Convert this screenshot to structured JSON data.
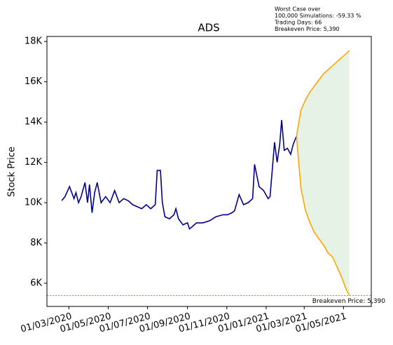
{
  "chart_data": {
    "type": "line",
    "title": "ADS",
    "y_label": "Stock Price",
    "annotation": [
      "Worst Case over",
      "100,000 Simulations: -59.33 %",
      "Trading Days: 66",
      "Breakeven Price: 5,390"
    ],
    "xlim": [
      "2020-01-27",
      "2021-06-13"
    ],
    "xticks": [
      {
        "value": "2020-03-01",
        "label": "01/03/2020"
      },
      {
        "value": "2020-05-01",
        "label": "01/05/2020"
      },
      {
        "value": "2020-07-01",
        "label": "01/07/2020"
      },
      {
        "value": "2020-09-01",
        "label": "01/09/2020"
      },
      {
        "value": "2020-11-01",
        "label": "01/11/2020"
      },
      {
        "value": "2021-01-01",
        "label": "01/01/2021"
      },
      {
        "value": "2021-03-01",
        "label": "01/03/2021"
      },
      {
        "value": "2021-05-01",
        "label": "01/05/2021"
      }
    ],
    "ylim": [
      4850,
      18250
    ],
    "yticks": [
      {
        "value": 6000,
        "label": "6K"
      },
      {
        "value": 8000,
        "label": "8K"
      },
      {
        "value": 10000,
        "label": "10K"
      },
      {
        "value": 12000,
        "label": "12K"
      },
      {
        "value": 14000,
        "label": "14K"
      },
      {
        "value": 16000,
        "label": "16K"
      },
      {
        "value": 18000,
        "label": "18K"
      }
    ],
    "fill_color": "#e5f2e5",
    "series": [
      {
        "color": "#00008b",
        "x": [
          "2020-02-19",
          "2020-02-24",
          "2020-03-02",
          "2020-03-09",
          "2020-03-12",
          "2020-03-16",
          "2020-03-20",
          "2020-03-26",
          "2020-03-30",
          "2020-04-02",
          "2020-04-06",
          "2020-04-10",
          "2020-04-14",
          "2020-04-20",
          "2020-04-27",
          "2020-05-04",
          "2020-05-11",
          "2020-05-18",
          "2020-05-25",
          "2020-06-01",
          "2020-06-08",
          "2020-06-15",
          "2020-06-22",
          "2020-06-29",
          "2020-07-06",
          "2020-07-13",
          "2020-07-16",
          "2020-07-21",
          "2020-07-24",
          "2020-07-28",
          "2020-08-04",
          "2020-08-11",
          "2020-08-14",
          "2020-08-18",
          "2020-08-25",
          "2020-09-01",
          "2020-09-04",
          "2020-09-08",
          "2020-09-15",
          "2020-09-25",
          "2020-10-05",
          "2020-10-15",
          "2020-10-26",
          "2020-11-02",
          "2020-11-09",
          "2020-11-13",
          "2020-11-20",
          "2020-11-27",
          "2020-12-04",
          "2020-12-11",
          "2020-12-14",
          "2020-12-21",
          "2020-12-28",
          "2021-01-04",
          "2021-01-07",
          "2021-01-14",
          "2021-01-18",
          "2021-01-22",
          "2021-01-25",
          "2021-01-29",
          "2021-02-03",
          "2021-02-08",
          "2021-02-12",
          "2021-02-17"
        ],
        "values": [
          10100,
          10300,
          10800,
          10200,
          10500,
          10000,
          10300,
          11000,
          10000,
          10900,
          9500,
          10500,
          11000,
          10000,
          10300,
          10000,
          10600,
          10000,
          10200,
          10100,
          9900,
          9800,
          9700,
          9900,
          9700,
          9900,
          11600,
          11600,
          10000,
          9300,
          9200,
          9400,
          9700,
          9200,
          8900,
          9000,
          8700,
          8800,
          9000,
          9000,
          9100,
          9300,
          9400,
          9400,
          9500,
          9600,
          10400,
          9900,
          10000,
          10200,
          11900,
          10800,
          10600,
          10200,
          10300,
          13000,
          12000,
          12900,
          14100,
          12600,
          12700,
          12400,
          12900,
          13300
        ]
      },
      {
        "color": "#ffa500",
        "x": [
          "2021-02-17",
          "2021-02-24",
          "2021-03-03",
          "2021-03-10",
          "2021-03-17",
          "2021-03-24",
          "2021-03-31",
          "2021-04-07",
          "2021-04-14",
          "2021-04-21",
          "2021-04-28",
          "2021-05-05",
          "2021-05-10"
        ],
        "values": [
          13300,
          14600,
          15100,
          15500,
          15800,
          16100,
          16400,
          16600,
          16800,
          17000,
          17200,
          17400,
          17550
        ]
      },
      {
        "color": "#ffa500",
        "x": [
          "2021-02-17",
          "2021-02-24",
          "2021-03-03",
          "2021-03-10",
          "2021-03-17",
          "2021-03-24",
          "2021-03-31",
          "2021-04-07",
          "2021-04-14",
          "2021-04-21",
          "2021-04-28",
          "2021-05-05",
          "2021-05-10"
        ],
        "values": [
          13300,
          10700,
          9600,
          9000,
          8500,
          8200,
          7900,
          7500,
          7300,
          6800,
          6300,
          5700,
          5400
        ]
      }
    ],
    "hline": {
      "value": 5390,
      "color": "#ff0000",
      "label": "Breakeven Price: 5,390"
    }
  }
}
